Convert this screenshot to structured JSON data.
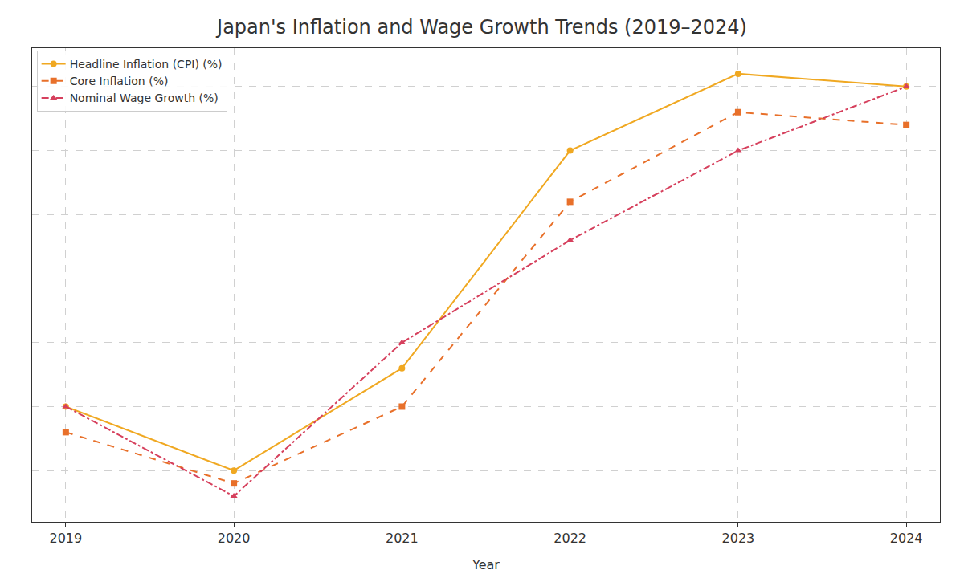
{
  "chart_data": {
    "type": "line",
    "title": "Japan's Inflation and Wage Growth Trends (2019–2024)",
    "x_label": "Year",
    "x": [
      2019,
      2020,
      2021,
      2022,
      2023,
      2024
    ],
    "series": [
      {
        "name": "Headline Inflation (CPI) (%)",
        "color": "#f0a821",
        "marker": "circle",
        "line_style": "solid",
        "values": [
          0.5,
          0.0,
          0.8,
          2.5,
          3.1,
          3.0
        ]
      },
      {
        "name": "Core Inflation (%)",
        "color": "#e8702a",
        "marker": "square",
        "line_style": "dash",
        "values": [
          0.3,
          -0.1,
          0.5,
          2.1,
          2.8,
          2.7
        ]
      },
      {
        "name": "Nominal Wage Growth (%)",
        "color": "#d6405d",
        "marker": "triangle-up",
        "line_style": "dashdot",
        "values": [
          0.5,
          -0.2,
          1.0,
          1.8,
          2.5,
          3.0
        ]
      }
    ],
    "xlim": [
      2018.8,
      2024.2
    ],
    "xticks": [
      2019,
      2020,
      2021,
      2022,
      2023,
      2024
    ],
    "ylim": [
      -0.4,
      3.3
    ],
    "yticks": [
      0,
      0.5,
      1,
      1.5,
      2,
      2.5,
      3
    ],
    "grid": true,
    "legend": "upper left",
    "tick_labels": "x"
  }
}
